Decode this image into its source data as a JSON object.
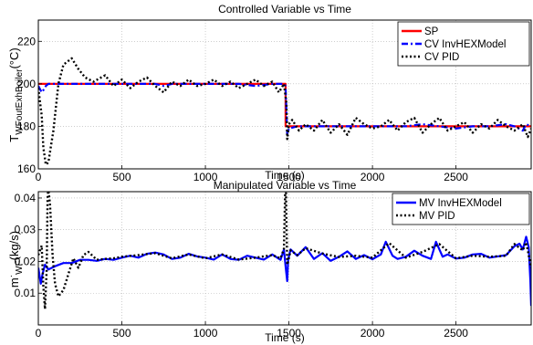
{
  "chart_data": [
    {
      "type": "line",
      "title": "Controlled Variable vs Time",
      "xlabel": "Time (s)",
      "ylabel_main": "T",
      "ylabel_sub": "WFoutExhBoiler",
      "ylabel_unit": "(°C)",
      "xlim": [
        0,
        2950
      ],
      "ylim": [
        160,
        230
      ],
      "xticks": [
        0,
        500,
        1000,
        1500,
        2000,
        2500
      ],
      "yticks": [
        160,
        180,
        200,
        220
      ],
      "grid": true,
      "legend_position": "top-right",
      "series": [
        {
          "name": "SP",
          "color": "#ff0000",
          "style": "solid",
          "x": [
            0,
            1480,
            1480,
            2950
          ],
          "y": [
            200,
            200,
            180,
            180
          ]
        },
        {
          "name": "CV InvHEXModel",
          "color": "#0000ff",
          "style": "dashdot",
          "x": [
            0,
            20,
            30,
            45,
            60,
            100,
            200,
            300,
            400,
            500,
            600,
            700,
            750,
            800,
            900,
            1000,
            1100,
            1200,
            1300,
            1400,
            1470,
            1480,
            1490,
            1500,
            1550,
            1600,
            1700,
            1800,
            1900,
            2000,
            2100,
            2200,
            2300,
            2400,
            2500,
            2600,
            2700,
            2800,
            2850,
            2900,
            2920,
            2950
          ],
          "y": [
            199,
            196,
            197,
            199,
            200,
            200,
            200,
            200,
            200,
            200,
            200,
            200,
            199,
            200,
            200,
            200,
            200,
            200,
            199,
            200,
            200,
            199,
            176,
            179,
            180,
            180,
            180,
            180,
            180,
            180,
            180,
            180,
            181,
            180,
            179,
            180,
            180,
            181,
            180,
            178,
            181,
            180
          ]
        },
        {
          "name": "CV PID",
          "color": "#000000",
          "style": "dotted",
          "x": [
            0,
            20,
            30,
            45,
            60,
            90,
            120,
            150,
            200,
            240,
            280,
            330,
            400,
            450,
            500,
            550,
            600,
            650,
            700,
            750,
            800,
            850,
            900,
            950,
            1000,
            1050,
            1100,
            1150,
            1200,
            1250,
            1300,
            1350,
            1400,
            1440,
            1470,
            1485,
            1490,
            1500,
            1520,
            1560,
            1600,
            1650,
            1700,
            1750,
            1800,
            1850,
            1900,
            1950,
            2000,
            2050,
            2100,
            2150,
            2200,
            2250,
            2300,
            2350,
            2400,
            2450,
            2500,
            2550,
            2600,
            2650,
            2700,
            2750,
            2800,
            2850,
            2900,
            2930,
            2950
          ],
          "y": [
            198,
            185,
            170,
            162,
            163,
            178,
            200,
            209,
            212,
            207,
            203,
            201,
            204,
            199,
            202,
            198,
            201,
            203,
            199,
            196,
            201,
            199,
            202,
            199,
            200,
            202,
            199,
            201,
            198,
            200,
            202,
            199,
            201,
            196,
            200,
            191,
            174,
            181,
            183,
            178,
            181,
            178,
            183,
            177,
            181,
            176,
            184,
            181,
            179,
            180,
            183,
            178,
            182,
            184,
            177,
            181,
            184,
            178,
            180,
            182,
            177,
            181,
            179,
            183,
            180,
            178,
            181,
            175,
            179
          ]
        }
      ]
    },
    {
      "type": "line",
      "title": "Manipulated Variable vs Time",
      "xlabel": "Time (s)",
      "ylabel_main": "m",
      "ylabel_sup": "·",
      "ylabel_sub": "WF",
      "ylabel_unit": "(kg/s)",
      "xlim": [
        0,
        2950
      ],
      "ylim": [
        0,
        0.042
      ],
      "xticks": [
        0,
        500,
        1000,
        1500,
        2000,
        2500
      ],
      "yticks": [
        0.01,
        0.02,
        0.03,
        0.04
      ],
      "grid": true,
      "legend_position": "top-right",
      "series": [
        {
          "name": "MV InvHEXModel",
          "color": "#0000ff",
          "style": "solid",
          "x": [
            0,
            15,
            25,
            40,
            60,
            100,
            150,
            200,
            250,
            300,
            350,
            400,
            450,
            500,
            550,
            600,
            650,
            700,
            750,
            800,
            850,
            900,
            950,
            1000,
            1050,
            1100,
            1150,
            1200,
            1250,
            1300,
            1350,
            1400,
            1450,
            1470,
            1480,
            1490,
            1495,
            1510,
            1550,
            1600,
            1650,
            1700,
            1750,
            1800,
            1850,
            1900,
            1950,
            2000,
            2050,
            2080,
            2120,
            2150,
            2200,
            2250,
            2300,
            2350,
            2380,
            2420,
            2450,
            2500,
            2550,
            2600,
            2650,
            2700,
            2750,
            2800,
            2850,
            2880,
            2900,
            2920,
            2935,
            2945,
            2950
          ],
          "y": [
            0.018,
            0.013,
            0.016,
            0.019,
            0.0175,
            0.0185,
            0.0195,
            0.0195,
            0.0205,
            0.0205,
            0.0202,
            0.0208,
            0.0205,
            0.0212,
            0.0218,
            0.0212,
            0.0224,
            0.0228,
            0.0222,
            0.0208,
            0.0212,
            0.0224,
            0.0216,
            0.0212,
            0.0206,
            0.0222,
            0.0208,
            0.0205,
            0.0218,
            0.0212,
            0.0206,
            0.0222,
            0.0205,
            0.0238,
            0.0185,
            0.0138,
            0.0205,
            0.0238,
            0.0218,
            0.0245,
            0.0208,
            0.0226,
            0.0202,
            0.0215,
            0.0232,
            0.0208,
            0.022,
            0.0207,
            0.0222,
            0.0262,
            0.0218,
            0.0208,
            0.0215,
            0.0234,
            0.0218,
            0.0208,
            0.0262,
            0.0215,
            0.0222,
            0.0209,
            0.0212,
            0.0222,
            0.0224,
            0.0212,
            0.0216,
            0.022,
            0.0248,
            0.0256,
            0.0238,
            0.0278,
            0.0245,
            0.014,
            0.006
          ]
        },
        {
          "name": "MV PID",
          "color": "#000000",
          "style": "dotted",
          "x": [
            0,
            20,
            30,
            40,
            50,
            55,
            60,
            70,
            85,
            100,
            120,
            150,
            180,
            210,
            240,
            270,
            300,
            350,
            400,
            450,
            500,
            600,
            700,
            800,
            900,
            1000,
            1100,
            1200,
            1300,
            1400,
            1450,
            1470,
            1478,
            1482,
            1486,
            1490,
            1495,
            1510,
            1550,
            1600,
            1700,
            1800,
            1900,
            2000,
            2100,
            2200,
            2300,
            2400,
            2500,
            2600,
            2700,
            2800,
            2850,
            2900,
            2920,
            2935,
            2950
          ],
          "y": [
            0.022,
            0.025,
            0.012,
            0.005,
            0.018,
            0.04,
            0.043,
            0.038,
            0.022,
            0.013,
            0.009,
            0.011,
            0.016,
            0.021,
            0.018,
            0.022,
            0.023,
            0.0205,
            0.0208,
            0.021,
            0.0215,
            0.022,
            0.0226,
            0.021,
            0.0222,
            0.021,
            0.0222,
            0.0206,
            0.0212,
            0.022,
            0.021,
            0.024,
            0.043,
            0.043,
            0.03,
            0.019,
            0.02,
            0.0235,
            0.022,
            0.0242,
            0.0225,
            0.0214,
            0.0218,
            0.0212,
            0.0258,
            0.0212,
            0.023,
            0.0255,
            0.021,
            0.0218,
            0.0215,
            0.0218,
            0.0255,
            0.0235,
            0.026,
            0.022,
            0.018
          ]
        }
      ]
    }
  ]
}
